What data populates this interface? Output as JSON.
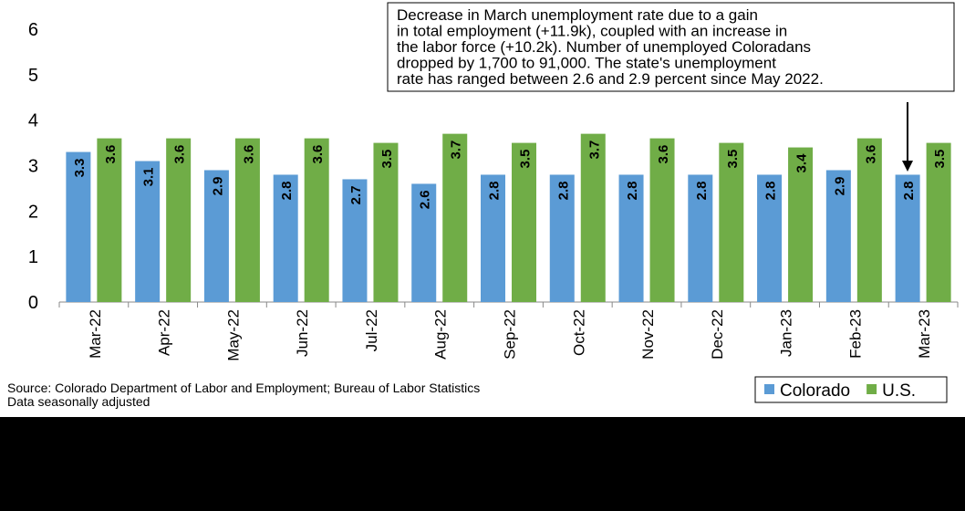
{
  "chart_data": {
    "type": "bar",
    "categories": [
      "Mar-22",
      "Apr-22",
      "May-22",
      "Jun-22",
      "Jul-22",
      "Aug-22",
      "Sep-22",
      "Oct-22",
      "Nov-22",
      "Dec-22",
      "Jan-23",
      "Feb-23",
      "Mar-23"
    ],
    "series": [
      {
        "name": "Colorado",
        "color": "#5b9bd5",
        "values": [
          3.3,
          3.1,
          2.9,
          2.8,
          2.7,
          2.6,
          2.8,
          2.8,
          2.8,
          2.8,
          2.8,
          2.9,
          2.8
        ]
      },
      {
        "name": "U.S.",
        "color": "#70ad47",
        "values": [
          3.6,
          3.6,
          3.6,
          3.6,
          3.5,
          3.7,
          3.5,
          3.7,
          3.6,
          3.5,
          3.4,
          3.6,
          3.5
        ]
      }
    ],
    "ylim": [
      0,
      6
    ],
    "yticks": [
      0,
      1,
      2,
      3,
      4,
      5,
      6
    ],
    "grid": false,
    "legend": "lower right",
    "annotation": [
      "Decrease in March unemployment rate due to a gain",
      "in total employment (+11.9k), coupled with an increase in",
      "the labor force (+10.2k). Number of unemployed Coloradans",
      "dropped by 1,700 to 91,000. The state's unemployment",
      "rate has ranged between 2.6 and 2.9 percent since May 2022."
    ],
    "source": [
      "Source: Colorado Department of Labor and Employment; Bureau of Labor Statistics",
      "Data seasonally adjusted"
    ]
  }
}
